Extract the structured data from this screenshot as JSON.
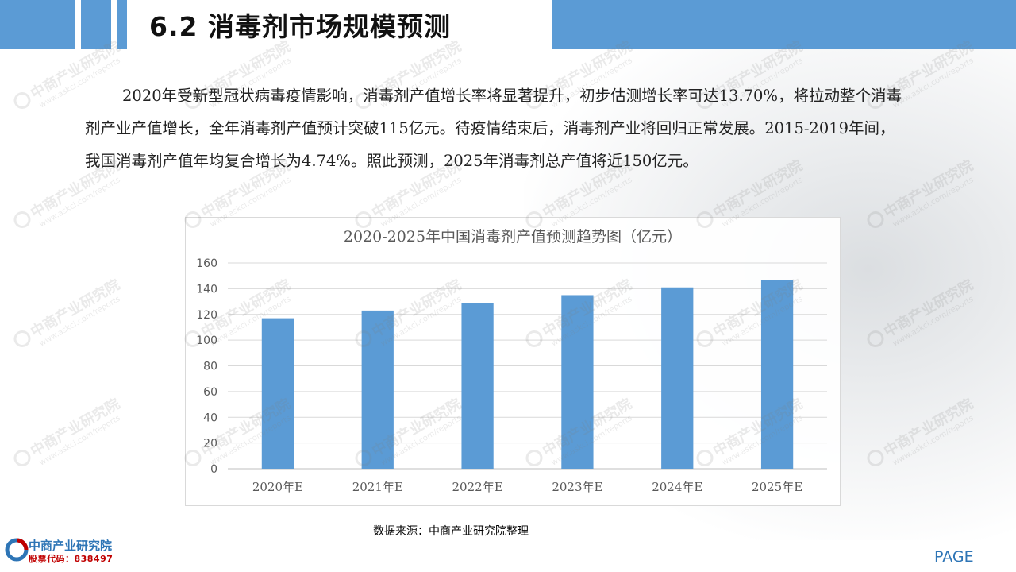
{
  "header": {
    "title": "6.2 消毒剂市场规模预测"
  },
  "body": {
    "paragraph": "2020年受新型冠状病毒疫情影响，消毒剂产值增长率将显著提升，初步估测增长率可达13.70%，将拉动整个消毒剂产业产值增长，全年消毒剂产值预计突破115亿元。待疫情结束后，消毒剂产业将回归正常发展。2015-2019年间，我国消毒剂产值年均复合增长为4.74%。照此预测，2025年消毒剂总产值将近150亿元。"
  },
  "chart_data": {
    "type": "bar",
    "title": "2020-2025年中国消毒剂产值预测趋势图（亿元）",
    "categories": [
      "2020年E",
      "2021年E",
      "2022年E",
      "2023年E",
      "2024年E",
      "2025年E"
    ],
    "values": [
      117,
      123,
      129,
      135,
      141,
      147
    ],
    "ylim": [
      0,
      160
    ],
    "yticks": [
      0,
      20,
      40,
      60,
      80,
      100,
      120,
      140,
      160
    ],
    "grid": true,
    "legend": "none",
    "bar_color": "#5b9bd5"
  },
  "footer": {
    "source": "数据来源：中商产业研究院整理",
    "logo_name": "中商产业研究院",
    "logo_code": "股票代码：838497",
    "page_label": "PAGE"
  },
  "colors": {
    "accent": "#5b9bd5",
    "logo_blue": "#2e75b6",
    "logo_red": "#c00000"
  },
  "watermark": {
    "text_cn": "中商产业研究院",
    "text_url": "www.askci.com/reports"
  }
}
